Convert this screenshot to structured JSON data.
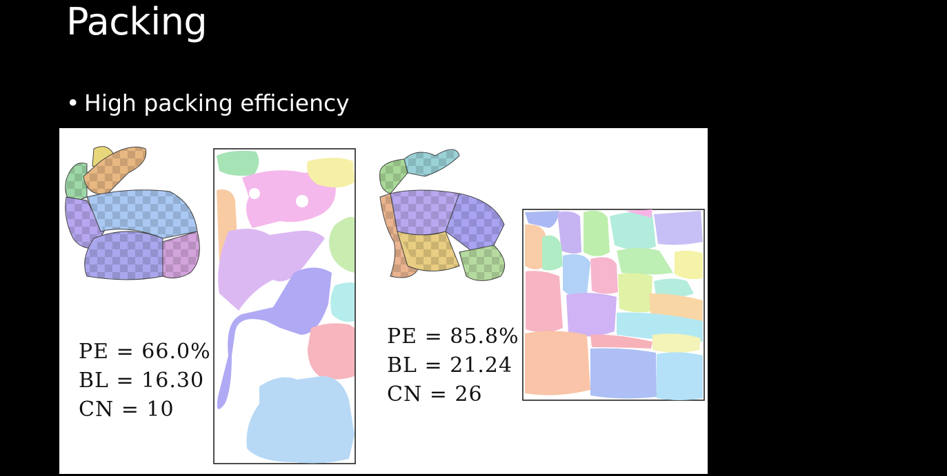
{
  "slide": {
    "title": "Packing",
    "bullet": "High packing efficiency"
  },
  "figure": {
    "left_result": {
      "pe": "PE = 66.0%",
      "bl": "BL = 16.30",
      "cn": "CN = 10"
    },
    "right_result": {
      "pe": "PE = 85.8%",
      "bl": "BL = 21.24",
      "cn": "CN = 26"
    }
  },
  "colors": {
    "background": "#000000",
    "text": "#ffffff",
    "figure_bg": "#ffffff"
  }
}
